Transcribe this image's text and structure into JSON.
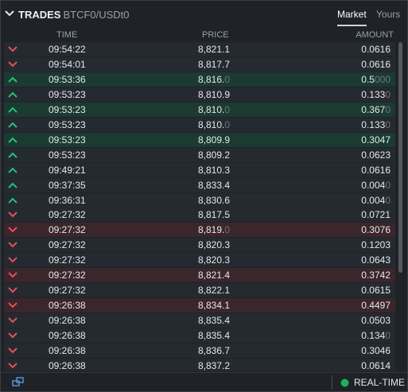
{
  "header": {
    "title": "TRADES",
    "pair": "BTCF0/USDt0",
    "tabs": [
      "Market",
      "Yours"
    ],
    "active_tab": 0
  },
  "table": {
    "columns": [
      "TIME",
      "PRICE",
      "AMOUNT"
    ],
    "rows": [
      {
        "time": "09:54:22",
        "price": "8,821.1",
        "amount": "0.0616",
        "direction": "down",
        "highlight": false
      },
      {
        "time": "09:54:01",
        "price": "8,817.7",
        "amount": "0.0616",
        "direction": "down",
        "highlight": false
      },
      {
        "time": "09:53:36",
        "price": "8,816.0",
        "amount": "0.5000",
        "direction": "up",
        "highlight": true
      },
      {
        "time": "09:53:23",
        "price": "8,810.9",
        "amount": "0.1330",
        "direction": "up",
        "highlight": false
      },
      {
        "time": "09:53:23",
        "price": "8,810.0",
        "amount": "0.3670",
        "direction": "up",
        "highlight": true
      },
      {
        "time": "09:53:23",
        "price": "8,810.0",
        "amount": "0.1330",
        "direction": "up",
        "highlight": false
      },
      {
        "time": "09:53:23",
        "price": "8,809.9",
        "amount": "0.3047",
        "direction": "up",
        "highlight": true
      },
      {
        "time": "09:53:23",
        "price": "8,809.2",
        "amount": "0.0623",
        "direction": "up",
        "highlight": false
      },
      {
        "time": "09:49:21",
        "price": "8,810.3",
        "amount": "0.0616",
        "direction": "up",
        "highlight": false
      },
      {
        "time": "09:37:35",
        "price": "8,833.4",
        "amount": "0.0040",
        "direction": "up",
        "highlight": false
      },
      {
        "time": "09:36:31",
        "price": "8,830.6",
        "amount": "0.0040",
        "direction": "up",
        "highlight": false
      },
      {
        "time": "09:27:32",
        "price": "8,817.5",
        "amount": "0.0721",
        "direction": "down",
        "highlight": false
      },
      {
        "time": "09:27:32",
        "price": "8,819.0",
        "amount": "0.3076",
        "direction": "down",
        "highlight": true
      },
      {
        "time": "09:27:32",
        "price": "8,820.3",
        "amount": "0.1203",
        "direction": "down",
        "highlight": false
      },
      {
        "time": "09:27:32",
        "price": "8,820.3",
        "amount": "0.0643",
        "direction": "down",
        "highlight": false
      },
      {
        "time": "09:27:32",
        "price": "8,821.4",
        "amount": "0.3742",
        "direction": "down",
        "highlight": true
      },
      {
        "time": "09:27:32",
        "price": "8,822.1",
        "amount": "0.0615",
        "direction": "down",
        "highlight": false
      },
      {
        "time": "09:26:38",
        "price": "8,834.1",
        "amount": "0.4497",
        "direction": "down",
        "highlight": true
      },
      {
        "time": "09:26:38",
        "price": "8,835.4",
        "amount": "0.0503",
        "direction": "down",
        "highlight": false
      },
      {
        "time": "09:26:38",
        "price": "8,835.4",
        "amount": "0.1340",
        "direction": "down",
        "highlight": false
      },
      {
        "time": "09:26:38",
        "price": "8,836.7",
        "amount": "0.3046",
        "direction": "down",
        "highlight": false
      },
      {
        "time": "09:26:38",
        "price": "8,837.2",
        "amount": "0.0614",
        "direction": "down",
        "highlight": false
      }
    ]
  },
  "footer": {
    "status": "REAL-TIME"
  }
}
